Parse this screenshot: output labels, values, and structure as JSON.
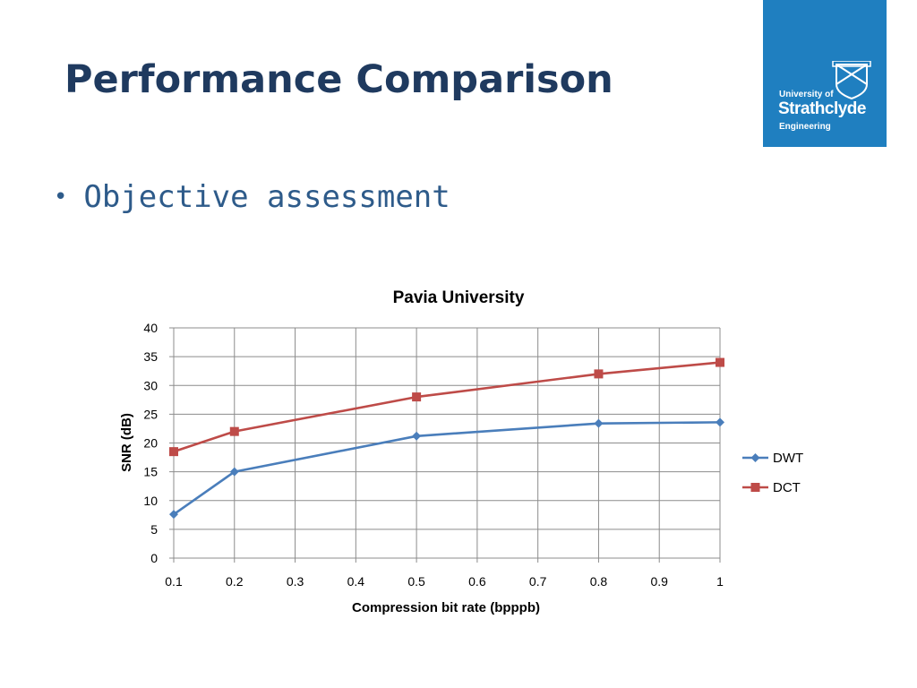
{
  "slide": {
    "title": "Performance Comparison",
    "bullet": "Objective assessment"
  },
  "logo": {
    "line1": "University of",
    "line2": "Strathclyde",
    "line3": "Engineering",
    "bg_color": "#1f7fc0"
  },
  "chart_data": {
    "type": "line",
    "title": "Pavia University",
    "xlabel": "Compression bit rate (bpppb)",
    "ylabel": "SNR (dB)",
    "x_ticks": [
      "0.1",
      "0.2",
      "0.3",
      "0.4",
      "0.5",
      "0.6",
      "0.7",
      "0.8",
      "0.9",
      "1"
    ],
    "y_ticks": [
      "0",
      "5",
      "10",
      "15",
      "20",
      "25",
      "30",
      "35",
      "40"
    ],
    "xlim": [
      0.1,
      1.0
    ],
    "ylim": [
      0,
      40
    ],
    "grid": true,
    "legend_position": "right",
    "series": [
      {
        "name": "DWT",
        "color": "#4a7ebb",
        "marker": "diamond",
        "x": [
          0.1,
          0.2,
          0.5,
          0.8,
          1.0
        ],
        "y": [
          7.6,
          15.0,
          21.2,
          23.4,
          23.6
        ]
      },
      {
        "name": "DCT",
        "color": "#be4b48",
        "marker": "square",
        "x": [
          0.1,
          0.2,
          0.5,
          0.8,
          1.0
        ],
        "y": [
          18.5,
          22.0,
          28.0,
          32.0,
          34.0
        ]
      }
    ]
  }
}
